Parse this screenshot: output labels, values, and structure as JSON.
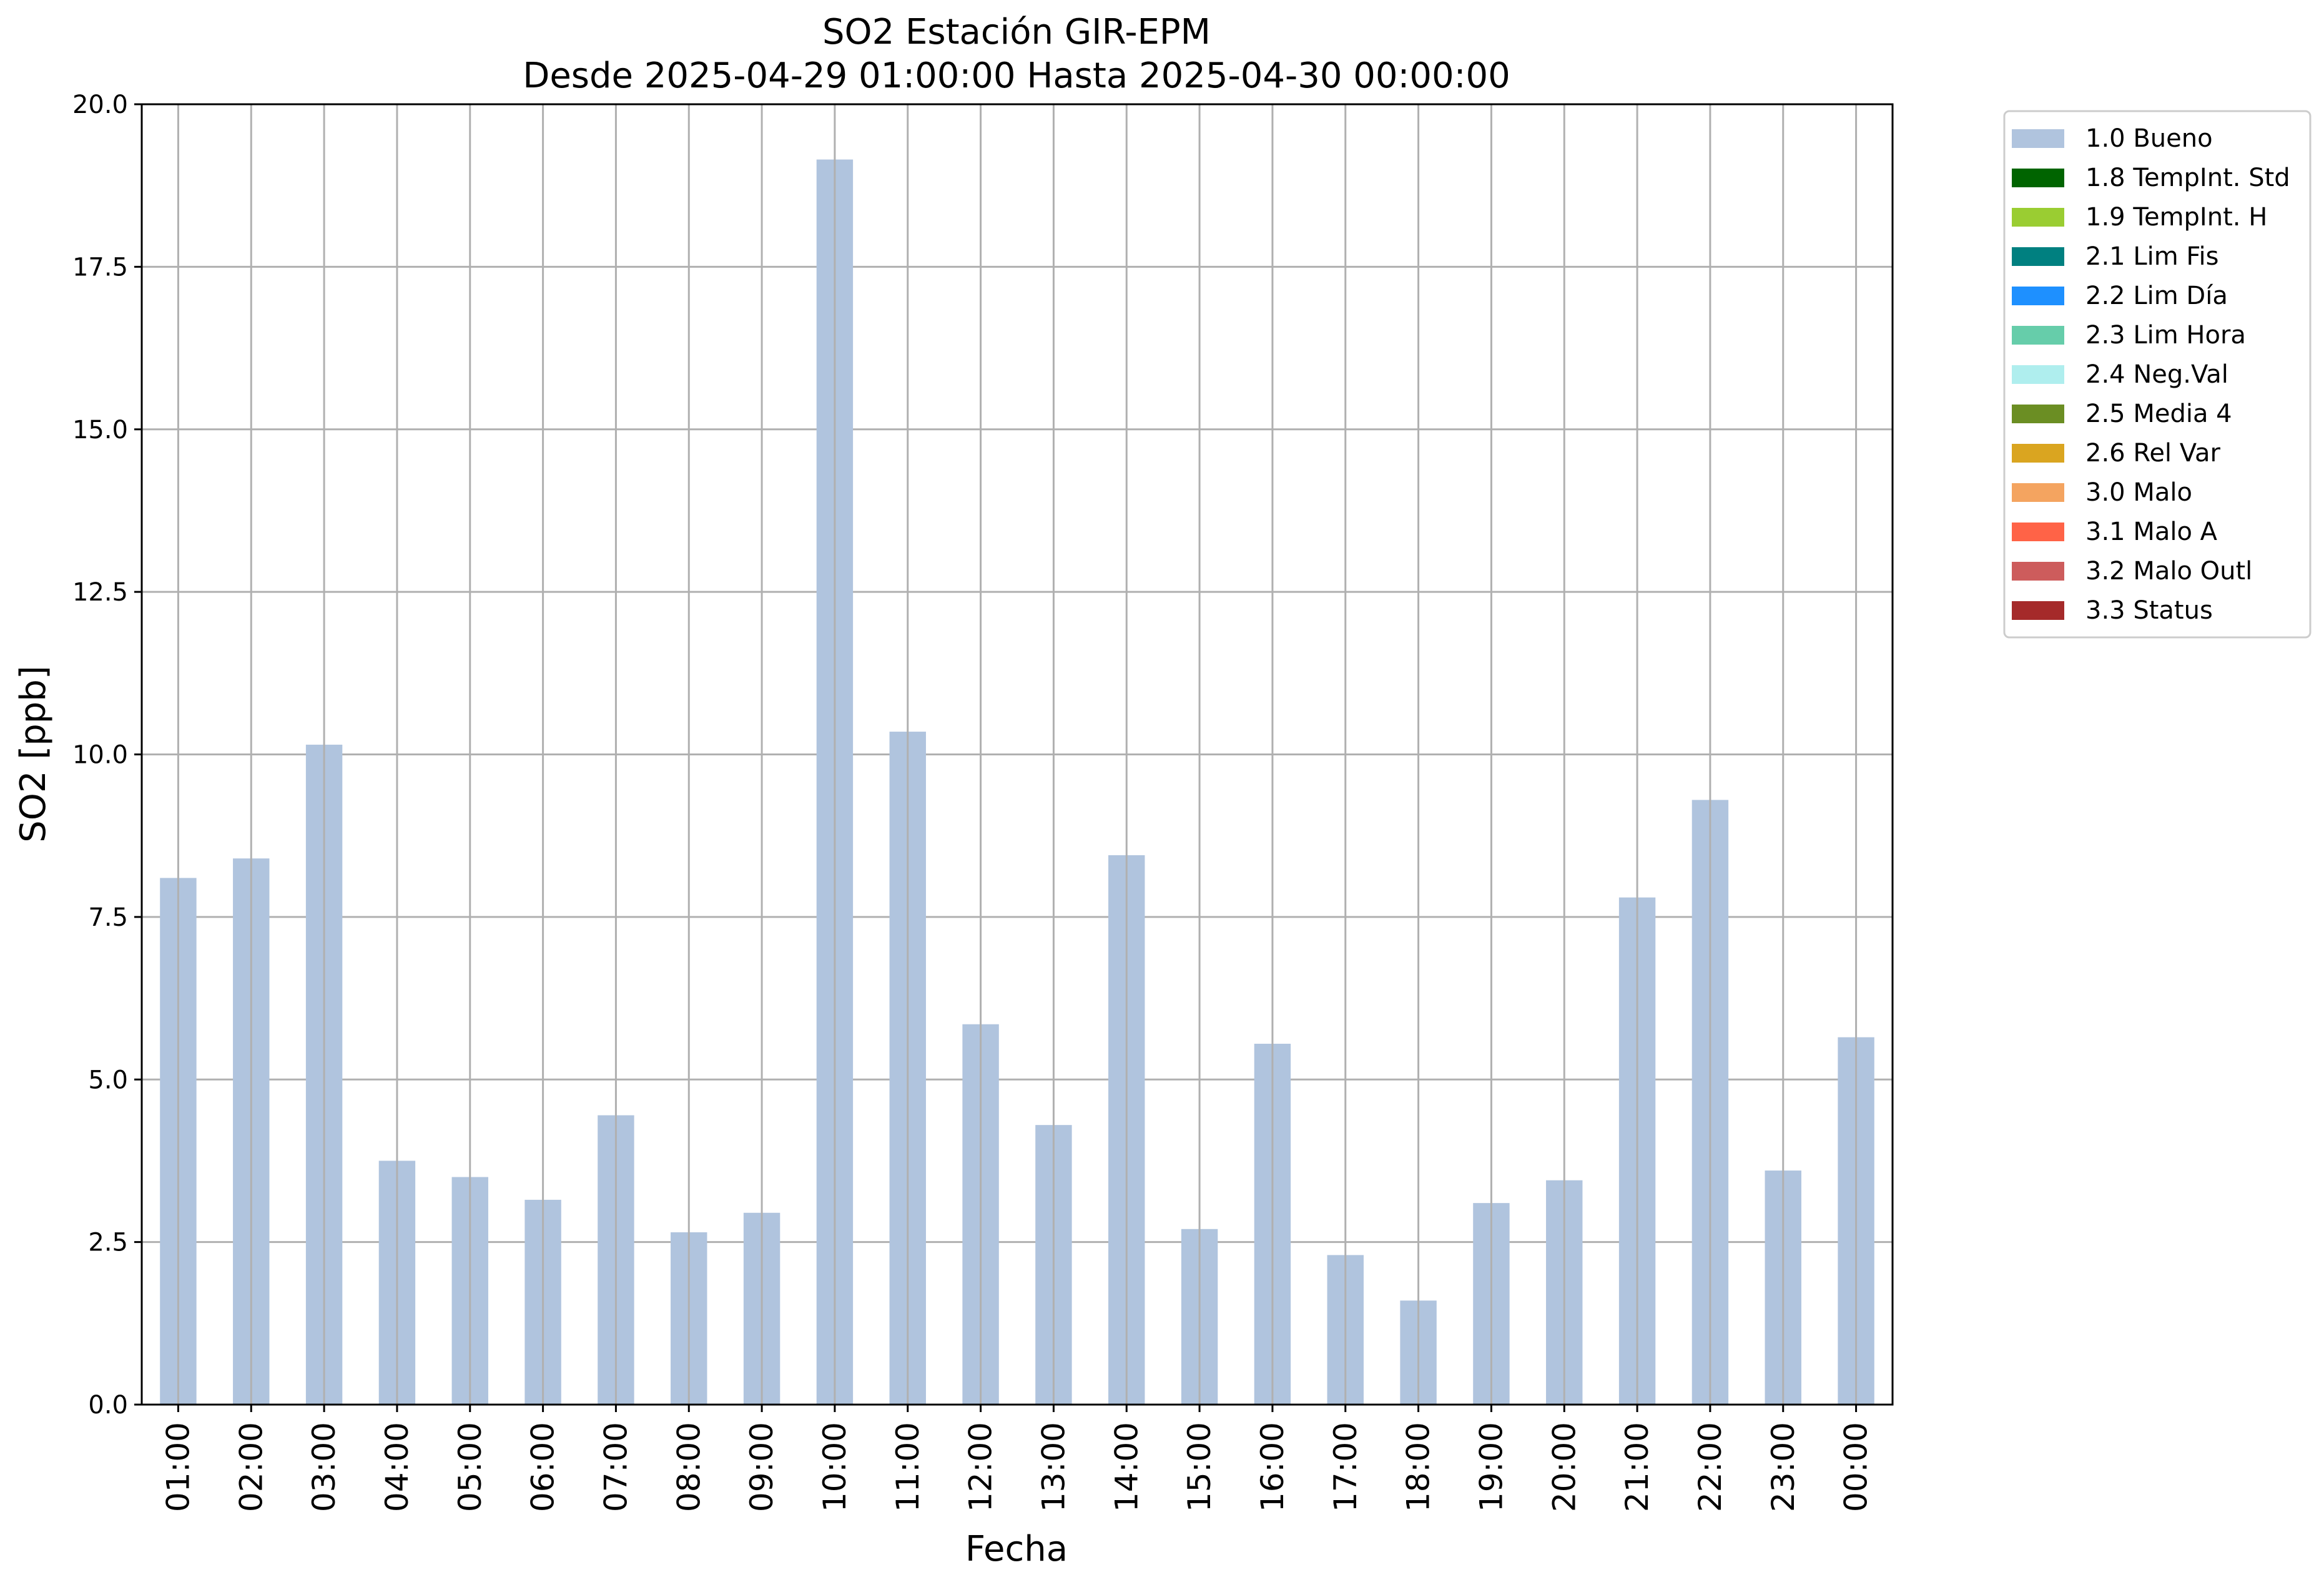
{
  "chart_data": {
    "type": "bar",
    "title": "SO2 Estación GIR-EPM",
    "subtitle": "Desde 2025-04-29 01:00:00 Hasta 2025-04-30 00:00:00",
    "xlabel": "Fecha",
    "ylabel": "SO2 [ppb]",
    "ylim": [
      0,
      20
    ],
    "yticks": [
      "0.0",
      "2.5",
      "5.0",
      "7.5",
      "10.0",
      "12.5",
      "15.0",
      "17.5",
      "20.0"
    ],
    "grid": true,
    "legend_position": "outside-top-right",
    "categories": [
      "01:00",
      "02:00",
      "03:00",
      "04:00",
      "05:00",
      "06:00",
      "07:00",
      "08:00",
      "09:00",
      "10:00",
      "11:00",
      "12:00",
      "13:00",
      "14:00",
      "15:00",
      "16:00",
      "17:00",
      "18:00",
      "19:00",
      "20:00",
      "21:00",
      "22:00",
      "23:00",
      "00:00"
    ],
    "series": [
      {
        "name": "1.0 Bueno",
        "color": "#b0c4de",
        "values": [
          8.1,
          8.4,
          10.15,
          3.75,
          3.5,
          3.15,
          4.45,
          2.65,
          2.95,
          19.15,
          10.35,
          5.85,
          4.3,
          8.45,
          2.7,
          5.55,
          2.3,
          1.6,
          3.1,
          3.45,
          7.8,
          9.3,
          3.6,
          5.65
        ]
      }
    ],
    "legend": [
      {
        "label": "1.0 Bueno",
        "color": "#b0c4de"
      },
      {
        "label": "1.8 TempInt. Std",
        "color": "#006400"
      },
      {
        "label": "1.9 TempInt. H",
        "color": "#9acd32"
      },
      {
        "label": "2.1 Lim Fis",
        "color": "#008080"
      },
      {
        "label": "2.2 Lim Día",
        "color": "#1e90ff"
      },
      {
        "label": "2.3 Lim Hora",
        "color": "#66cdaa"
      },
      {
        "label": "2.4 Neg.Val",
        "color": "#afeeee"
      },
      {
        "label": "2.5 Media 4",
        "color": "#6b8e23"
      },
      {
        "label": "2.6 Rel Var",
        "color": "#daa520"
      },
      {
        "label": "3.0 Malo",
        "color": "#f4a460"
      },
      {
        "label": "3.1 Malo A",
        "color": "#ff6347"
      },
      {
        "label": "3.2 Malo Outl",
        "color": "#cd5c5c"
      },
      {
        "label": "3.3 Status",
        "color": "#a52a2a"
      }
    ]
  }
}
